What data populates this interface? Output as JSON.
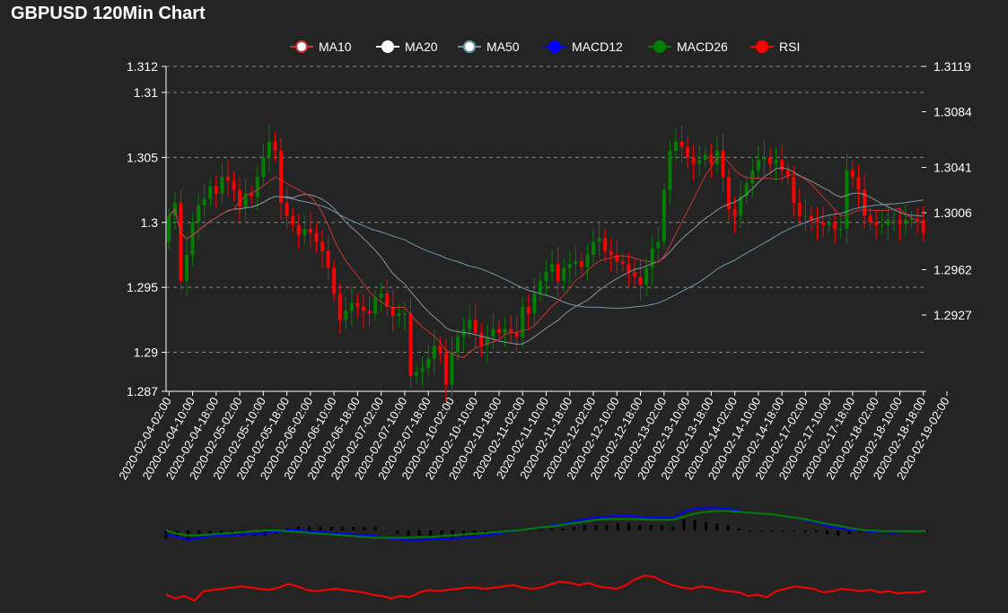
{
  "title": "GBPUSD 120Min Chart",
  "legend": [
    {
      "name": "MA10",
      "color": "#c23531",
      "fill": "#ffffff",
      "icon": "circle-line-icon"
    },
    {
      "name": "MA20",
      "color": "#ffffff",
      "fill": "#ffffff",
      "icon": "circle-line-icon"
    },
    {
      "name": "MA50",
      "color": "#6e9aa6",
      "fill": "#ffffff",
      "icon": "circle-line-icon"
    },
    {
      "name": "MACD12",
      "color": "#0000ff",
      "fill": "#0000ff",
      "icon": "circle-line-icon"
    },
    {
      "name": "MACD26",
      "color": "#008000",
      "fill": "#008000",
      "icon": "circle-line-icon"
    },
    {
      "name": "RSI",
      "color": "#ff0000",
      "fill": "#ff0000",
      "icon": "circle-line-icon"
    }
  ],
  "colors": {
    "up": "#008000",
    "down": "#ff0000",
    "grid": "#888888",
    "axis": "#ffffff",
    "background": "#242424"
  },
  "chart_data": {
    "type": "candlestick",
    "left_axis": {
      "min": 1.287,
      "max": 1.312,
      "ticks": [
        "1.312",
        "1.31",
        "1.305",
        "1.3",
        "1.295",
        "1.29",
        "1.287"
      ]
    },
    "right_axis": {
      "ticks": [
        "1.3119",
        "1.3084",
        "1.3041",
        "1.3006",
        "1.2962",
        "1.2927"
      ]
    },
    "x_tick_labels": [
      "2020-02-04-02:00",
      "2020-02-04-10:00",
      "2020-02-04-18:00",
      "2020-02-05-02:00",
      "2020-02-05-10:00",
      "2020-02-05-18:00",
      "2020-02-06-02:00",
      "2020-02-06-10:00",
      "2020-02-06-18:00",
      "2020-02-07-02:00",
      "2020-02-07-10:00",
      "2020-02-07-18:00",
      "2020-02-10-02:00",
      "2020-02-10-10:00",
      "2020-02-10-18:00",
      "2020-02-11-02:00",
      "2020-02-11-10:00",
      "2020-02-11-18:00",
      "2020-02-12-02:00",
      "2020-02-12-10:00",
      "2020-02-12-18:00",
      "2020-02-13-02:00",
      "2020-02-13-10:00",
      "2020-02-13-18:00",
      "2020-02-14-02:00",
      "2020-02-14-10:00",
      "2020-02-14-18:00",
      "2020-02-17-02:00",
      "2020-02-17-10:00",
      "2020-02-17-18:00",
      "2020-02-18-02:00",
      "2020-02-18-10:00",
      "2020-02-18-18:00",
      "2020-02-19-02:00"
    ],
    "bars_per_label": 4,
    "close": [
      1.3005,
      1.3015,
      1.2955,
      1.2975,
      1.3,
      1.3013,
      1.3018,
      1.3028,
      1.3022,
      1.3035,
      1.3032,
      1.3025,
      1.3012,
      1.3022,
      1.302,
      1.3035,
      1.305,
      1.3062,
      1.3055,
      1.3015,
      1.3005,
      1.2998,
      1.299,
      1.2995,
      1.2992,
      1.2985,
      1.2978,
      1.2965,
      1.2945,
      1.2925,
      1.2932,
      1.2938,
      1.2935,
      1.2932,
      1.293,
      1.2942,
      1.2945,
      1.2935,
      1.2928,
      1.293,
      1.293,
      1.2882,
      1.2885,
      1.2888,
      1.2895,
      1.2905,
      1.29,
      1.2875,
      1.29,
      1.2912,
      1.2918,
      1.2925,
      1.2915,
      1.2905,
      1.2912,
      1.2918,
      1.2915,
      1.2918,
      1.2915,
      1.2912,
      1.2935,
      1.293,
      1.2945,
      1.2955,
      1.2962,
      1.2968,
      1.2955,
      1.2965,
      1.2968,
      1.297,
      1.2966,
      1.2975,
      1.2985,
      1.2988,
      1.2978,
      1.2975,
      1.297,
      1.2968,
      1.2962,
      1.2958,
      1.2952,
      1.2965,
      1.298,
      1.2985,
      1.3025,
      1.3055,
      1.3062,
      1.3058,
      1.305,
      1.3045,
      1.3048,
      1.3052,
      1.3045,
      1.3055,
      1.3035,
      1.301,
      1.3005,
      1.302,
      1.303,
      1.304,
      1.3048,
      1.305,
      1.3045,
      1.3048,
      1.304,
      1.3035,
      1.3015,
      1.3005,
      1.3005,
      1.3002,
      1.3,
      1.2998,
      1.3,
      1.2995,
      1.2995,
      1.304,
      1.3035,
      1.3025,
      1.3005,
      1.3,
      1.2998,
      1.2998,
      1.3002,
      1.3002,
      1.2999,
      1.3002,
      1.3003,
      1.3002,
      1.2992
    ],
    "macd12": [
      -0.0005,
      -0.0008,
      -0.0012,
      -0.0009,
      -0.0007,
      -0.0006,
      -0.0006,
      -0.0005,
      -0.0004,
      -0.0003,
      -0.0002,
      0.0,
      0.0,
      -0.0001,
      -0.0002,
      -0.0003,
      -0.0004,
      -0.0005,
      -0.0006,
      -0.0007,
      -0.0009,
      -0.0011,
      -0.0012,
      -0.0012,
      -0.0011,
      -0.0011,
      -0.001,
      -0.0009,
      -0.0008,
      -0.0006,
      -0.0004,
      -0.0002,
      0.0,
      0.0002,
      0.0004,
      0.0006,
      0.0008,
      0.0011,
      0.0014,
      0.0016,
      0.0017,
      0.0018,
      0.0018,
      0.0017,
      0.0016,
      0.0016,
      0.0015,
      0.0023,
      0.0027,
      0.0028,
      0.0028,
      0.0027,
      0.0024,
      0.0022,
      0.0021,
      0.002,
      0.0018,
      0.0016,
      0.0013,
      0.001,
      0.0006,
      0.0003,
      0.0001,
      0.0,
      -0.0001,
      -0.0002,
      -0.0003,
      -0.0002,
      -0.0001,
      -0.0002
    ],
    "macd26": [
      0.0,
      -0.0004,
      -0.0006,
      -0.0006,
      -0.0005,
      -0.0004,
      -0.0003,
      -0.0002,
      -0.0001,
      0.0,
      0.0,
      -0.0001,
      -0.0002,
      -0.0003,
      -0.0004,
      -0.0005,
      -0.0006,
      -0.0007,
      -0.0008,
      -0.0009,
      -0.0009,
      -0.0009,
      -0.0009,
      -0.0008,
      -0.0008,
      -0.0007,
      -0.0006,
      -0.0005,
      -0.0004,
      -0.0003,
      -0.0002,
      -0.0001,
      0.0,
      0.0002,
      0.0004,
      0.0005,
      0.0007,
      0.0009,
      0.0011,
      0.0013,
      0.0014,
      0.0014,
      0.0014,
      0.0014,
      0.0013,
      0.0013,
      0.0013,
      0.0017,
      0.0021,
      0.0023,
      0.0024,
      0.0024,
      0.0023,
      0.0022,
      0.0021,
      0.002,
      0.0018,
      0.0016,
      0.0014,
      0.0011,
      0.0008,
      0.0006,
      0.0003,
      0.0001,
      0.0,
      -0.0001,
      -0.0001,
      -0.0001,
      -0.0001,
      -0.0001
    ],
    "rsi": [
      25,
      22,
      24,
      20,
      28,
      29,
      30,
      31,
      32,
      31,
      30,
      29,
      31,
      34,
      32,
      29,
      28,
      29,
      30,
      29,
      28,
      27,
      25,
      24,
      22,
      24,
      23,
      27,
      29,
      28,
      29,
      30,
      31,
      31,
      30,
      31,
      32,
      33,
      31,
      30,
      31,
      34,
      36,
      35,
      33,
      35,
      32,
      31,
      30,
      33,
      38,
      41,
      40,
      36,
      33,
      31,
      30,
      32,
      31,
      29,
      28,
      27,
      24,
      25,
      23,
      28,
      30,
      32,
      31,
      30,
      27,
      28,
      30,
      29,
      28,
      29,
      27,
      28,
      26,
      27,
      27,
      28
    ]
  }
}
